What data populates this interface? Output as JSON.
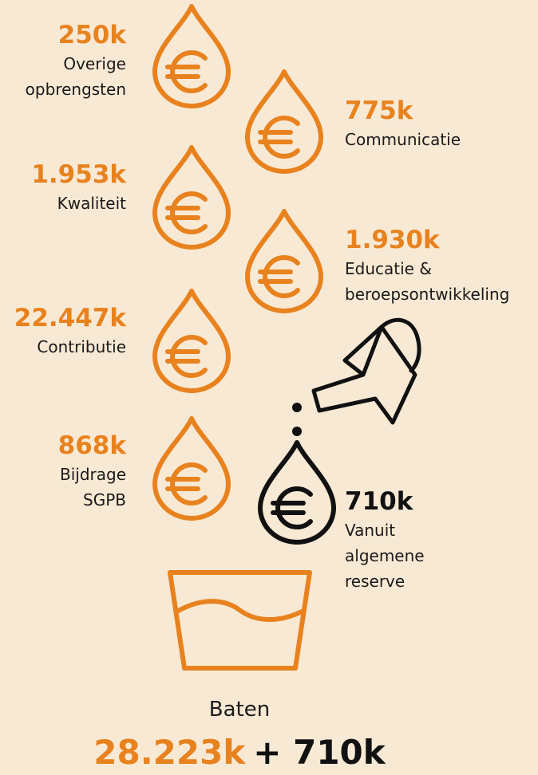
{
  "items": [
    {
      "value": "250k",
      "label": [
        "Overige",
        "opbrengsten"
      ]
    },
    {
      "value": "775k",
      "label": [
        "Communicatie"
      ]
    },
    {
      "value": "1.953k",
      "label": [
        "Kwaliteit"
      ]
    },
    {
      "value": "1.930k",
      "label": [
        "Educatie &",
        "beroepsontwikkeling"
      ]
    },
    {
      "value": "22.447k",
      "label": [
        "Contributie"
      ]
    },
    {
      "value": "868k",
      "label": [
        "Bijdrage",
        "SGPB"
      ]
    }
  ],
  "reserve": {
    "value": "710k",
    "label": [
      "Vanuit",
      "algemene",
      "reserve"
    ]
  },
  "total": {
    "label": "Baten",
    "amount": "28.223k",
    "extra": "+ 710k"
  }
}
